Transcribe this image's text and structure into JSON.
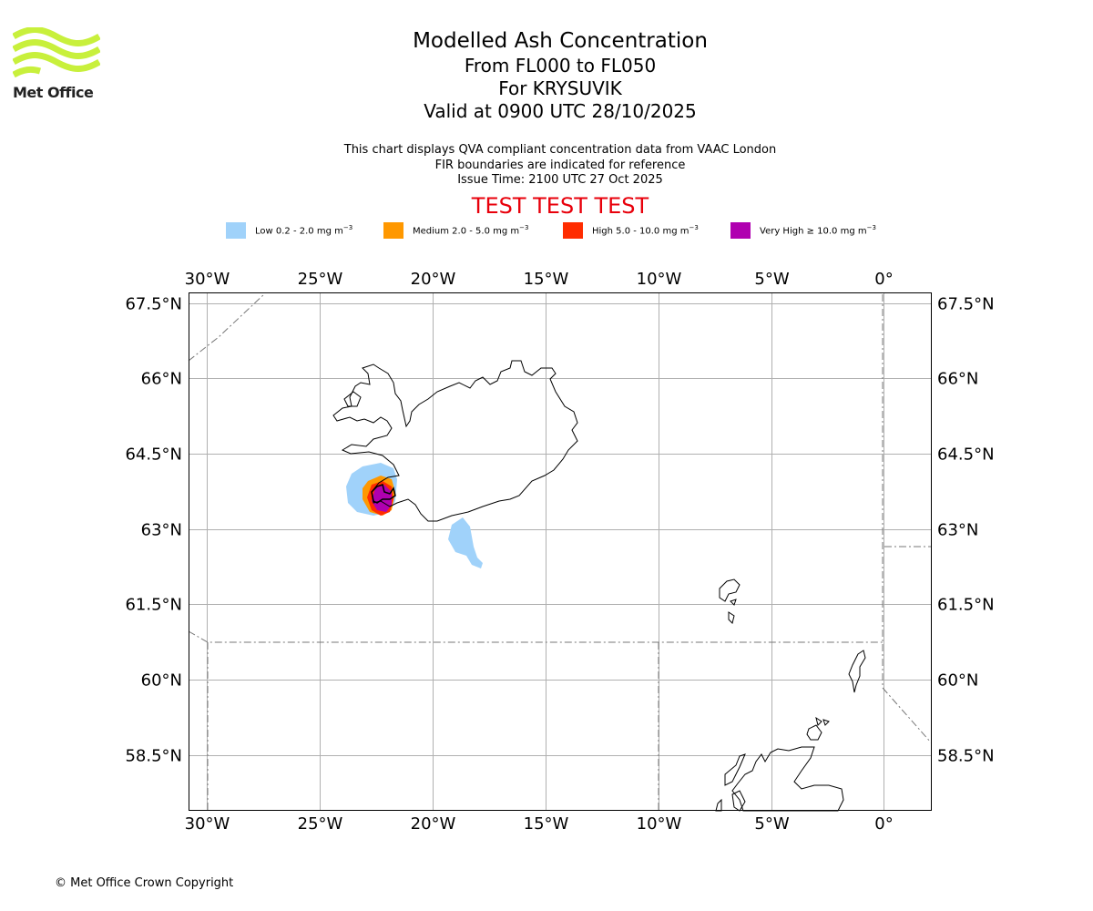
{
  "brand": {
    "name": "Met Office",
    "logo_color": "#c8f03c"
  },
  "header": {
    "title": "Modelled Ash Concentration",
    "level_range": "From FL000 to FL050",
    "volcano": "For KRYSUVIK",
    "valid_time": "Valid at 0900 UTC 28/10/2025"
  },
  "subtitle": {
    "line1": "This chart displays QVA compliant concentration data from VAAC London",
    "line2": "FIR boundaries are indicated for reference",
    "issue_time": "Issue Time: 2100 UTC 27 Oct 2025"
  },
  "banner": {
    "text": "TEST TEST TEST",
    "color": "#e8000b"
  },
  "legend": {
    "items": [
      {
        "label": "Low 0.2 - 2.0 mg m",
        "exp": "−3",
        "color": "#a0d2fa"
      },
      {
        "label": "Medium 2.0 - 5.0 mg m",
        "exp": "−3",
        "color": "#ff9800"
      },
      {
        "label": "High 5.0 - 10.0 mg m",
        "exp": "−3",
        "color": "#ff2c00"
      },
      {
        "label": "Very High  ≥  10.0 mg m",
        "exp": "−3",
        "color": "#b000b0"
      }
    ]
  },
  "map": {
    "lon_range": [
      -30.8,
      2.1
    ],
    "lat_range": [
      57.4,
      67.7
    ],
    "lon_ticks": [
      -30,
      -25,
      -20,
      -15,
      -10,
      -5,
      0
    ],
    "lon_tick_labels": [
      "30°W",
      "25°W",
      "20°W",
      "15°W",
      "10°W",
      "5°W",
      "0°"
    ],
    "lat_ticks": [
      67.5,
      66,
      64.5,
      63,
      61.5,
      60,
      58.5
    ],
    "lat_tick_labels": [
      "67.5°N",
      "66°N",
      "64.5°N",
      "63°N",
      "61.5°N",
      "60°N",
      "58.5°N"
    ],
    "gridline_color": "#b0b0b0",
    "volcano_marker": {
      "lon": -22.2,
      "lat": 63.9
    }
  },
  "footer": {
    "copyright": "© Met Office Crown Copyright"
  }
}
